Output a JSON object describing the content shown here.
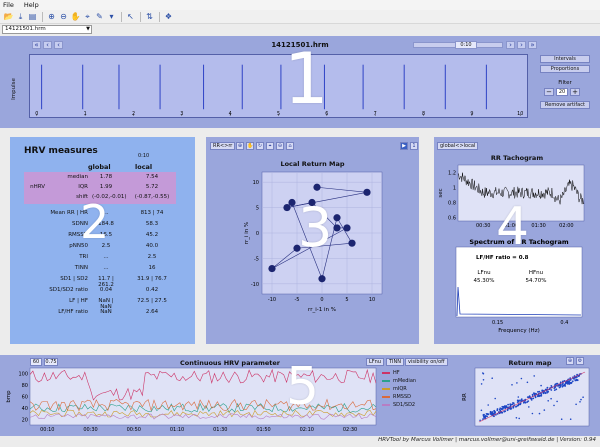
{
  "menu": [
    "File",
    "Help"
  ],
  "toolbar_icons": [
    "open-icon",
    "save-icon",
    "print-icon",
    "zoom-in-icon",
    "zoom-out-icon",
    "pan-icon",
    "data-cursor-icon",
    "brush-icon",
    "arrow-icon",
    "colorbar-icon",
    "legend-icon"
  ],
  "file": {
    "selected": "14121501.hrm"
  },
  "panel1": {
    "title": "14121501.hrm",
    "time_value": "0:10",
    "ylabel": "Impulse",
    "xticks": [
      "0",
      "1",
      "2",
      "3",
      "4",
      "5",
      "6",
      "7",
      "8",
      "9",
      "10"
    ],
    "impulses": [
      0.1,
      0.95,
      1.7,
      2.55,
      3.45,
      4.25,
      5.05,
      5.95,
      6.75,
      7.6,
      8.45,
      9.3
    ],
    "intervals_label": "Intervals",
    "proportions_label": "Proportions",
    "filter_label": "Filter",
    "filter_value": "20",
    "filter_minus": "−",
    "filter_plus": "+",
    "remove_label": "Remove artifact",
    "number": "1"
  },
  "panel2": {
    "title": "HRV measures",
    "col_global": "global",
    "col_local": "local",
    "col_local_sub": "0:10",
    "rows": [
      {
        "label": "median",
        "global": "1.78",
        "local": "7.54"
      },
      {
        "label": "IQR",
        "global": "1.99",
        "local": "5.72"
      },
      {
        "label": "shift",
        "global": "(-0.02,-0.01)",
        "local": "(-0.87,-0.55)"
      },
      {
        "label": "Mean RR | HR",
        "global": "...",
        "local": "813 | 74"
      },
      {
        "label": "SDNN",
        "global": "184.8",
        "local": "58.3"
      },
      {
        "label": "RMSSD",
        "global": "16.5",
        "local": "45.2"
      },
      {
        "label": "pNN50",
        "global": "2.5",
        "local": "40.0"
      },
      {
        "label": "TRI",
        "global": "...",
        "local": "2.5"
      },
      {
        "label": "TINN",
        "global": "...",
        "local": "16"
      },
      {
        "label": "SD1 | SD2",
        "global": "11.7 | 261.2",
        "local": "31.9 | 76.7"
      },
      {
        "label": "SD1/SD2 ratio",
        "global": "0.04",
        "local": "0.42"
      },
      {
        "label": "LF | HF",
        "global": "NaN | NaN",
        "local": "72.5 | 27.5"
      },
      {
        "label": "LF/HF ratio",
        "global": "NaN",
        "local": "2.64"
      }
    ],
    "group_label": "nHRV",
    "number": "2"
  },
  "panel3": {
    "dropdown": "RR<>rr",
    "title": "Local Return Map",
    "ylabel": "rr_i in %",
    "xlabel": "rr_i-1 in %",
    "xticks": [
      "-10",
      "-5",
      "0",
      "5",
      "10"
    ],
    "yticks": [
      "10",
      "5",
      "0",
      "-5",
      "-10"
    ],
    "xlim": [
      -12,
      12
    ],
    "ylim": [
      -12,
      12
    ],
    "points": [
      [
        -1,
        9
      ],
      [
        9,
        8
      ],
      [
        -7,
        5
      ],
      [
        -2,
        6
      ],
      [
        3,
        1
      ],
      [
        5,
        1
      ],
      [
        -10,
        -7
      ],
      [
        -5,
        -3
      ],
      [
        6,
        -2
      ],
      [
        3,
        3
      ],
      [
        0,
        -9
      ],
      [
        -6,
        6
      ]
    ],
    "page_value": "1",
    "number": "3"
  },
  "panel4": {
    "dropdown": "global<>local",
    "title": "RR Tachogram",
    "ylabel": "sec",
    "yticks": [
      "1.2",
      "1",
      "0.8",
      "0.6"
    ],
    "xticks": [
      "00:30",
      "01:00",
      "01:30",
      "02:00"
    ],
    "spectrum_title": "Spectrum of RR Tachogram",
    "ratio_label": "LF/HF ratio = 0.8",
    "lf_label": "LFnu",
    "lf_value": "45.30%",
    "hf_label": "HFnu",
    "hf_value": "54.70%",
    "freq_xticks": [
      "0.15",
      "0.4"
    ],
    "freq_xlabel": "Frequency (Hz)",
    "number": "4"
  },
  "panel5": {
    "box1": "60",
    "box2": "0.75",
    "title": "Continuous HRV parameter",
    "ylabel": "bmp",
    "yticks": [
      "100",
      "80",
      "60",
      "40",
      "20"
    ],
    "xticks": [
      "00:10",
      "00:30",
      "00:50",
      "01:10",
      "01:30",
      "01:50",
      "02:10",
      "02:30"
    ],
    "tag_lfnu": "LFnu",
    "tag_tinn": "TINN",
    "tag_visibility": "visibility on/off",
    "legend": [
      {
        "name": "HF",
        "color": "#cc3366"
      },
      {
        "name": "mMedian",
        "color": "#2ba08c"
      },
      {
        "name": "mIQR",
        "color": "#cc9d2b"
      },
      {
        "name": "RMSSD",
        "color": "#d96a3b"
      },
      {
        "name": "SD1/SD2",
        "color": "#b77dc3"
      }
    ],
    "return_title": "Return map",
    "return_ylabel": "RR",
    "number": "5"
  },
  "footer": "HRVTool by Marcus Vollmer | marcus.vollmer@uni-greifswald.de | Version: 0.94"
}
